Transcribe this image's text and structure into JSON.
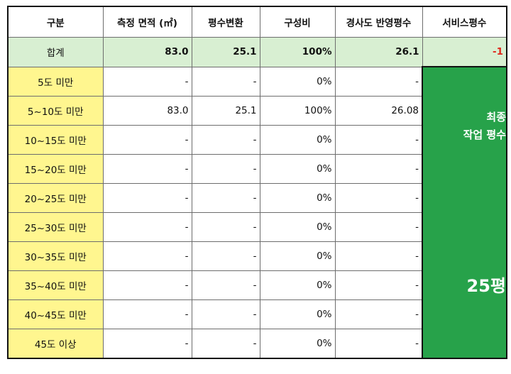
{
  "headers": [
    "구분",
    "측정 면적 (㎡)",
    "평수변환",
    "구성비",
    "경사도 반영평수",
    "서비스평수"
  ],
  "total": {
    "label": "합계",
    "area": "83.0",
    "pyeong": "25.1",
    "ratio": "100%",
    "slope_pyeong": "26.1",
    "service": "-1"
  },
  "rows": [
    {
      "label": "5도 미만",
      "area": "-",
      "pyeong": "-",
      "ratio": "0%",
      "slope_pyeong": "-"
    },
    {
      "label": "5~10도 미만",
      "area": "83.0",
      "pyeong": "25.1",
      "ratio": "100%",
      "slope_pyeong": "26.08"
    },
    {
      "label": "10~15도 미만",
      "area": "-",
      "pyeong": "-",
      "ratio": "0%",
      "slope_pyeong": "-"
    },
    {
      "label": "15~20도 미만",
      "area": "-",
      "pyeong": "-",
      "ratio": "0%",
      "slope_pyeong": "-"
    },
    {
      "label": "20~25도 미만",
      "area": "-",
      "pyeong": "-",
      "ratio": "0%",
      "slope_pyeong": "-"
    },
    {
      "label": "25~30도 미만",
      "area": "-",
      "pyeong": "-",
      "ratio": "0%",
      "slope_pyeong": "-"
    },
    {
      "label": "30~35도 미만",
      "area": "-",
      "pyeong": "-",
      "ratio": "0%",
      "slope_pyeong": "-"
    },
    {
      "label": "35~40도 미만",
      "area": "-",
      "pyeong": "-",
      "ratio": "0%",
      "slope_pyeong": "-"
    },
    {
      "label": "40~45도 미만",
      "area": "-",
      "pyeong": "-",
      "ratio": "0%",
      "slope_pyeong": "-"
    },
    {
      "label": "45도 이상",
      "area": "-",
      "pyeong": "-",
      "ratio": "0%",
      "slope_pyeong": "-"
    }
  ],
  "final": {
    "title_line1": "최종",
    "title_line2": "작업 평수",
    "value": "25평"
  },
  "colors": {
    "band_label_bg": "#fff68f",
    "total_row_bg": "#d8efd2",
    "final_bg": "#27a24a",
    "negative_text": "#e0271b"
  }
}
